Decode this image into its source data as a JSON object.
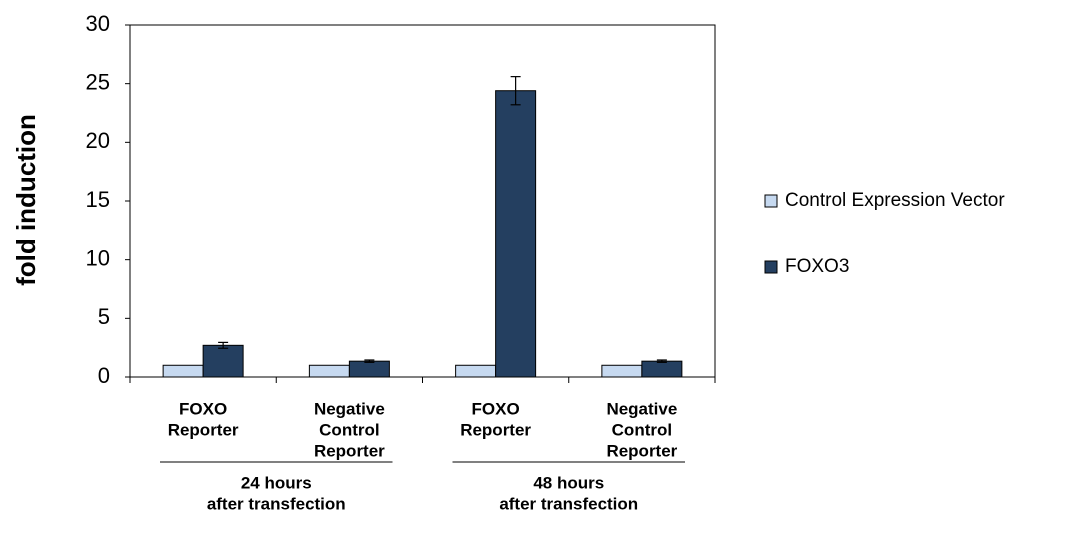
{
  "chart_data": {
    "type": "bar",
    "ylabel": "fold induction",
    "categories": [
      [
        "FOXO",
        "Reporter"
      ],
      [
        "Negative",
        "Control",
        "Reporter"
      ],
      [
        "FOXO",
        "Reporter"
      ],
      [
        "Negative",
        "Control",
        "Reporter"
      ]
    ],
    "groups": [
      [
        "24 hours",
        "after transfection"
      ],
      [
        "48 hours",
        "after transfection"
      ]
    ],
    "series": [
      {
        "name": "Control Expression Vector",
        "color": "#c6d9f0",
        "values": [
          1,
          1,
          1,
          1
        ]
      },
      {
        "name": "FOXO3",
        "color": "#243f60",
        "values": [
          2.7,
          1.35,
          24.4,
          1.35
        ],
        "errors": [
          0.25,
          0.1,
          1.2,
          0.1
        ]
      }
    ],
    "ylim": [
      0,
      30
    ],
    "yticks": [
      0,
      5,
      10,
      15,
      20,
      25,
      30
    ],
    "grid": false,
    "legend": "right"
  }
}
